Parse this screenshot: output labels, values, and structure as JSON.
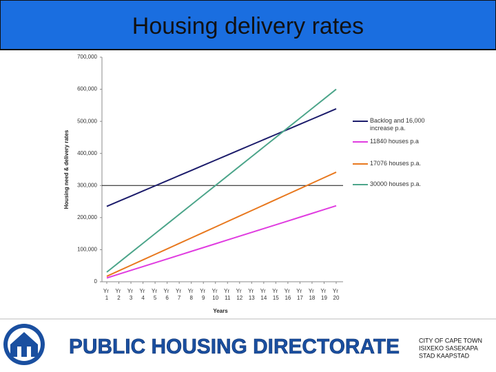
{
  "title": "Housing delivery rates",
  "chart_data": {
    "type": "line",
    "y_label": "Housing need & delivery rates",
    "x_label": "Years",
    "categories": [
      "Yr 1",
      "Yr 2",
      "Yr 3",
      "Yr 4",
      "Yr 5",
      "Yr 6",
      "Yr 7",
      "Yr 8",
      "Yr 9",
      "Yr 10",
      "Yr 11",
      "Yr 12",
      "Yr 13",
      "Yr 14",
      "Yr 15",
      "Yr 16",
      "Yr 17",
      "Yr 18",
      "Yr 19",
      "Yr 20"
    ],
    "series": [
      {
        "name": "Backlog and 16,000 increase p.a.",
        "color": "#1c1c6b",
        "values": [
          235000,
          251000,
          267000,
          283000,
          299000,
          315000,
          331000,
          347000,
          363000,
          379000,
          395000,
          411000,
          427000,
          443000,
          459000,
          475000,
          491000,
          507000,
          523000,
          539000
        ]
      },
      {
        "name": "11840 houses p.a",
        "color": "#e03ce0",
        "values": [
          11840,
          23680,
          35520,
          47360,
          59200,
          71040,
          82880,
          94720,
          106560,
          118400,
          130240,
          142080,
          153920,
          165760,
          177600,
          189440,
          201280,
          213120,
          224960,
          236800
        ]
      },
      {
        "name": "17076 houses p.a.",
        "color": "#e8781e",
        "values": [
          17076,
          34152,
          51228,
          68304,
          85380,
          102456,
          119532,
          136608,
          153684,
          170760,
          187836,
          204912,
          221988,
          239064,
          256140,
          273216,
          290292,
          307368,
          324444,
          341520
        ]
      },
      {
        "name": "30000 houses p.a.",
        "color": "#4ca58a",
        "values": [
          30000,
          60000,
          90000,
          120000,
          150000,
          180000,
          210000,
          240000,
          270000,
          300000,
          330000,
          360000,
          390000,
          420000,
          450000,
          480000,
          510000,
          540000,
          570000,
          600000
        ]
      }
    ],
    "ylim": [
      0,
      700000
    ],
    "yticks": [
      0,
      {
        "value": 100000,
        "label": "100,000"
      },
      {
        "value": 200000,
        "label": "200,000"
      },
      {
        "value": 300000,
        "label": "300,000"
      },
      {
        "value": 400000,
        "label": "400,000"
      },
      {
        "value": 500000,
        "label": "500,000"
      },
      {
        "value": 600000,
        "label": "600,000"
      },
      {
        "value": 700000,
        "label": "700,000"
      }
    ],
    "hline": 300000,
    "legend": "right"
  },
  "footer": {
    "directorate": "PUBLIC HOUSING DIRECTORATE",
    "city": [
      "CITY OF CAPE TOWN",
      "ISIXEKO SASEKAPA",
      "STAD KAAPSTAD"
    ]
  }
}
